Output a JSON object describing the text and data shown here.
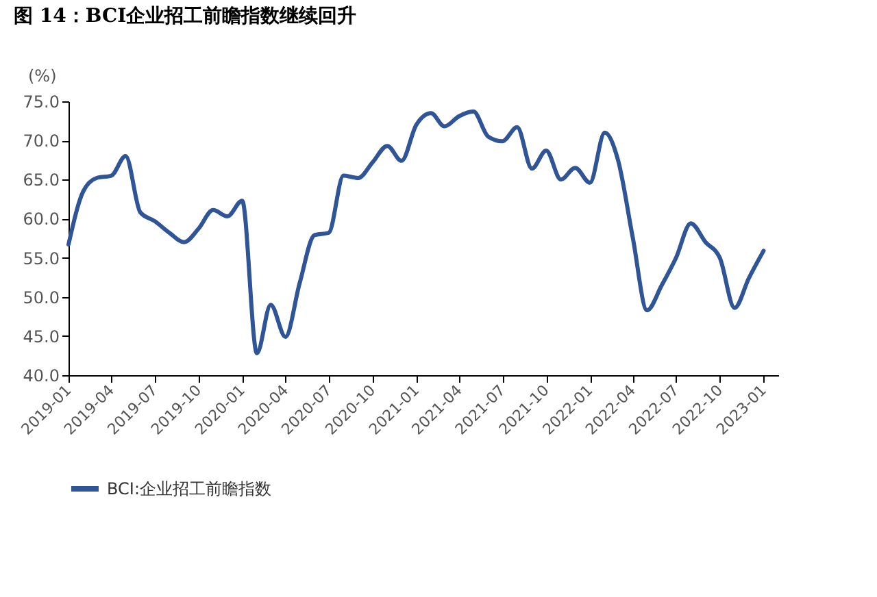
{
  "chart_data": {
    "type": "line",
    "title": "图 14：BCI企业招工前瞻指数继续回升",
    "ylabel": "(%)",
    "x": [
      "2019-01",
      "2019-02",
      "2019-03",
      "2019-04",
      "2019-05",
      "2019-06",
      "2019-07",
      "2019-08",
      "2019-09",
      "2019-10",
      "2019-11",
      "2019-12",
      "2020-01",
      "2020-02",
      "2020-03",
      "2020-04",
      "2020-05",
      "2020-06",
      "2020-07",
      "2020-08",
      "2020-09",
      "2020-10",
      "2020-11",
      "2020-12",
      "2021-01",
      "2021-02",
      "2021-03",
      "2021-04",
      "2021-05",
      "2021-06",
      "2021-07",
      "2021-08",
      "2021-09",
      "2021-10",
      "2021-11",
      "2021-12",
      "2022-01",
      "2022-02",
      "2022-03",
      "2022-04",
      "2022-05",
      "2022-06",
      "2022-07",
      "2022-08",
      "2022-09",
      "2022-10",
      "2022-11",
      "2022-12",
      "2023-01"
    ],
    "series": [
      {
        "name": "BCI:企业招工前瞻指数",
        "color": "#2f5597",
        "values": [
          56.7,
          63.5,
          65.2,
          65.5,
          68.0,
          60.8,
          59.7,
          58.2,
          57.0,
          58.7,
          61.1,
          60.3,
          62.3,
          42.8,
          49.0,
          44.9,
          51.8,
          57.9,
          58.2,
          65.5,
          65.2,
          67.2,
          69.3,
          67.4,
          72.0,
          73.5,
          71.8,
          73.1,
          73.7,
          70.5,
          69.9,
          71.7,
          66.4,
          68.7,
          65.0,
          66.5,
          64.6,
          71.0,
          67.5,
          57.6,
          48.3,
          51.5,
          55.0,
          59.4,
          57.0,
          55.0,
          48.6,
          52.4,
          55.9
        ]
      }
    ],
    "xlim": [
      "2019-01",
      "2023-02"
    ],
    "xticks": [
      "2019-01",
      "2019-04",
      "2019-07",
      "2019-10",
      "2020-01",
      "2020-04",
      "2020-07",
      "2020-10",
      "2021-01",
      "2021-04",
      "2021-07",
      "2021-10",
      "2022-01",
      "2022-04",
      "2022-07",
      "2022-10",
      "2023-01"
    ],
    "ylim": [
      40,
      75
    ],
    "yticks": [
      {
        "value": 40,
        "label": "40.0"
      },
      {
        "value": 45,
        "label": "45.0"
      },
      {
        "value": 50,
        "label": "50.0"
      },
      {
        "value": 55,
        "label": "55.0"
      },
      {
        "value": 60,
        "label": "60.0"
      },
      {
        "value": 65,
        "label": "65.0"
      },
      {
        "value": 70,
        "label": "70.0"
      },
      {
        "value": 75,
        "label": "75.0"
      }
    ],
    "grid": false,
    "legend": "bottom",
    "marker": "none",
    "line_style": "solid"
  }
}
